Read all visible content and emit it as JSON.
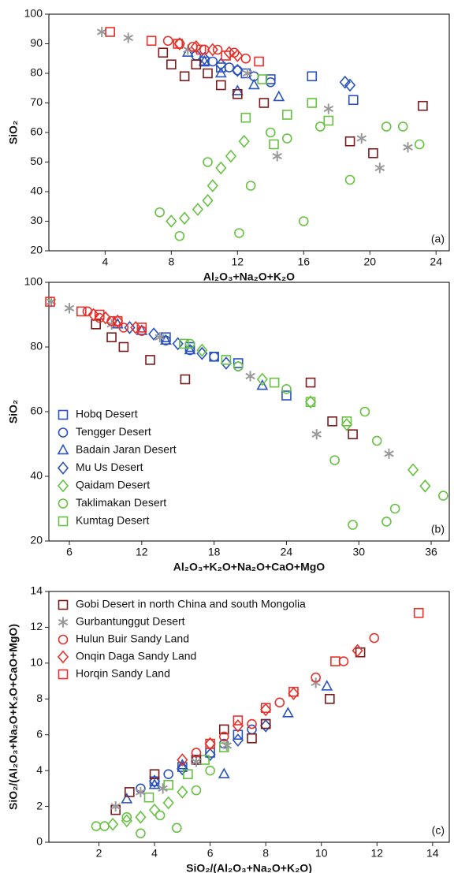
{
  "chart_data": [
    {
      "type": "scatter",
      "panel_label": "(a)",
      "x_label": "Al₂O₃+Na₂O+K₂O",
      "y_label": "SiO₂",
      "xlim": [
        0.6,
        24.8
      ],
      "ylim": [
        20,
        100
      ],
      "xticks": [
        4,
        8,
        12,
        16,
        20,
        24
      ],
      "yticks": [
        20,
        30,
        40,
        50,
        60,
        70,
        80,
        90,
        100
      ],
      "series": [
        {
          "marker": "square",
          "color": "#2a52be",
          "x": [
            10,
            11,
            12.5,
            14,
            16.5,
            19
          ],
          "values": [
            84,
            82,
            80,
            78,
            79,
            71
          ]
        },
        {
          "marker": "circle",
          "color": "#2a52be",
          "x": [
            9.5,
            10.5,
            11.5,
            12,
            13,
            14
          ],
          "values": [
            86,
            84,
            82,
            81,
            79,
            77
          ]
        },
        {
          "marker": "triangle",
          "color": "#2a52be",
          "x": [
            9,
            10,
            11,
            12,
            13,
            14.5
          ],
          "values": [
            87,
            84,
            80,
            74,
            76,
            72
          ]
        },
        {
          "marker": "diamond",
          "color": "#2a52be",
          "x": [
            10,
            11,
            12,
            18.5,
            18.8
          ],
          "values": [
            85,
            83,
            81,
            77,
            76
          ]
        },
        {
          "marker": "diamond",
          "color": "#66c240",
          "x": [
            8,
            8.8,
            9.6,
            10.2,
            10.5,
            11,
            11.6,
            12.4
          ],
          "values": [
            30,
            31,
            34,
            37,
            42,
            48,
            52,
            57
          ]
        },
        {
          "marker": "circle",
          "color": "#66c240",
          "x": [
            7.3,
            8.5,
            10.2,
            12.1,
            12.8,
            14,
            15,
            16,
            17,
            18.8,
            21,
            22,
            23
          ],
          "values": [
            33,
            25,
            50,
            26,
            42,
            60,
            58,
            30,
            62,
            44,
            62,
            62,
            56
          ]
        },
        {
          "marker": "square",
          "color": "#66c240",
          "x": [
            12.5,
            13.5,
            14.2,
            15,
            16.5,
            17.5
          ],
          "values": [
            65,
            78,
            56,
            66,
            70,
            64
          ]
        },
        {
          "marker": "square",
          "color": "#7b1a1a",
          "x": [
            7.5,
            8,
            8.8,
            9.5,
            10.2,
            11,
            12,
            13.6,
            18.8,
            20.2,
            23.2
          ],
          "values": [
            87,
            83,
            79,
            83,
            80,
            76,
            73,
            70,
            57,
            53,
            69
          ]
        },
        {
          "marker": "asterisk",
          "color": "#999999",
          "x": [
            3.8,
            5.4,
            9,
            12.6,
            14.4,
            17.5,
            19.5,
            20.6,
            22.3
          ],
          "values": [
            94,
            92,
            88,
            80,
            52,
            68,
            58,
            48,
            55
          ]
        },
        {
          "marker": "circle",
          "color": "#e8312b",
          "x": [
            7.8,
            8.5,
            9.3,
            10,
            10.8,
            11.8,
            12.5
          ],
          "values": [
            91,
            90,
            89,
            88,
            88,
            87,
            85
          ]
        },
        {
          "marker": "diamond",
          "color": "#e8312b",
          "x": [
            8.5,
            9.5,
            10.5,
            11.5,
            12
          ],
          "values": [
            90,
            89,
            88,
            87,
            86
          ]
        },
        {
          "marker": "square",
          "color": "#e8312b",
          "x": [
            4.3,
            6.8,
            8.4,
            9.8,
            11.3,
            13.3
          ],
          "values": [
            94,
            91,
            90,
            88,
            86,
            84
          ]
        }
      ]
    },
    {
      "type": "scatter",
      "panel_label": "(b)",
      "x_label": "Al₂O₃+K₂O+Na₂O+CaO+MgO",
      "y_label": "SiO₂",
      "xlim": [
        4.3,
        37.5
      ],
      "ylim": [
        20,
        100
      ],
      "xticks": [
        6,
        12,
        18,
        24,
        30,
        36
      ],
      "yticks": [
        20,
        40,
        60,
        80,
        100
      ],
      "series": [
        {
          "name": "Hobq Desert",
          "marker": "square",
          "color": "#2a52be",
          "x": [
            14,
            16,
            18,
            20,
            24
          ],
          "values": [
            83,
            80,
            77,
            75,
            65
          ]
        },
        {
          "name": "Tengger Desert",
          "marker": "circle",
          "color": "#2a52be",
          "x": [
            12,
            14,
            16,
            18,
            20
          ],
          "values": [
            85,
            82,
            79,
            77,
            74
          ]
        },
        {
          "name": "Badain Jaran Desert",
          "marker": "triangle",
          "color": "#2a52be",
          "x": [
            10,
            12,
            14,
            16,
            22
          ],
          "values": [
            87,
            85,
            82,
            79,
            68
          ]
        },
        {
          "name": "Mu Us Desert",
          "marker": "diamond",
          "color": "#2a52be",
          "x": [
            11,
            13,
            15,
            17,
            19
          ],
          "values": [
            86,
            84,
            81,
            78,
            75
          ]
        },
        {
          "name": "Qaidam Desert",
          "marker": "diamond",
          "color": "#66c240",
          "x": [
            17,
            22,
            26,
            29,
            34.5,
            35.5
          ],
          "values": [
            79,
            70,
            63,
            56,
            42,
            37
          ]
        },
        {
          "name": "Taklimakan Desert",
          "marker": "circle",
          "color": "#66c240",
          "x": [
            16,
            20,
            24,
            28,
            29.5,
            30.5,
            31.5,
            32.3,
            33,
            37
          ],
          "values": [
            81,
            74,
            67,
            45,
            25,
            60,
            51,
            26,
            30,
            34
          ]
        },
        {
          "name": "Kumtag Desert",
          "marker": "square",
          "color": "#66c240",
          "x": [
            15.5,
            19,
            23,
            26,
            29
          ],
          "values": [
            81,
            76,
            69,
            63,
            57
          ]
        },
        {
          "marker": "square",
          "color": "#7b1a1a",
          "x": [
            8.2,
            9.5,
            10.5,
            12.7,
            15.6,
            26,
            27.8,
            29.5
          ],
          "values": [
            87,
            83,
            80,
            76,
            70,
            69,
            57,
            53
          ]
        },
        {
          "marker": "asterisk",
          "color": "#999999",
          "x": [
            4.5,
            6,
            9.5,
            13.5,
            21,
            26.5,
            32.5
          ],
          "values": [
            94,
            92,
            87,
            83,
            71,
            53,
            47
          ]
        },
        {
          "marker": "circle",
          "color": "#e8312b",
          "x": [
            7.5,
            8.5,
            9.5,
            10.5,
            12
          ],
          "values": [
            91,
            89,
            88,
            86,
            85
          ]
        },
        {
          "marker": "diamond",
          "color": "#e8312b",
          "x": [
            8,
            9,
            10,
            11.5
          ],
          "values": [
            90,
            89,
            88,
            86
          ]
        },
        {
          "marker": "square",
          "color": "#e8312b",
          "x": [
            4.4,
            7,
            8.5,
            10,
            12
          ],
          "values": [
            94,
            91,
            90,
            88,
            86
          ]
        }
      ]
    },
    {
      "type": "scatter",
      "panel_label": "(c)",
      "x_label": "SiO₂/(Al₂O₃+Na₂O+K₂O)",
      "y_label": "SiO₂/(Al₂O₃+Na₂O+K₂O+CaO+MgO)",
      "xlim": [
        0.2,
        14.6
      ],
      "ylim": [
        0,
        14
      ],
      "xticks": [
        2,
        4,
        6,
        8,
        10,
        12,
        14
      ],
      "yticks": [
        0,
        2,
        4,
        6,
        8,
        10,
        12,
        14
      ],
      "series": [
        {
          "marker": "square",
          "color": "#2a52be",
          "x": [
            4,
            5,
            6,
            7,
            8
          ],
          "values": [
            3.4,
            4.2,
            5,
            6,
            6.6
          ]
        },
        {
          "marker": "circle",
          "color": "#2a52be",
          "x": [
            3.5,
            4.5,
            5.5,
            6.5,
            7.5
          ],
          "values": [
            3,
            3.8,
            4.6,
            5.5,
            6.3
          ]
        },
        {
          "marker": "triangle",
          "color": "#2a52be",
          "x": [
            3,
            4,
            5,
            6.5,
            8.8,
            10.2
          ],
          "values": [
            2.4,
            3.2,
            4.3,
            3.8,
            7.2,
            8.7
          ]
        },
        {
          "marker": "diamond",
          "color": "#2a52be",
          "x": [
            4,
            5,
            6,
            7,
            8
          ],
          "values": [
            3.4,
            4.1,
            4.9,
            5.7,
            6.5
          ]
        },
        {
          "marker": "diamond",
          "color": "#66c240",
          "x": [
            2.5,
            3,
            3.5,
            4,
            4.5,
            5
          ],
          "values": [
            1,
            1.2,
            1.4,
            1.8,
            2.2,
            2.8
          ]
        },
        {
          "marker": "circle",
          "color": "#66c240",
          "x": [
            1.9,
            2.2,
            3,
            3.5,
            4.2,
            4.8,
            5.5,
            6
          ],
          "values": [
            0.9,
            0.9,
            1.4,
            0.5,
            1.5,
            0.8,
            2.9,
            4
          ]
        },
        {
          "marker": "square",
          "color": "#66c240",
          "x": [
            3.8,
            4.5,
            5.2,
            5.8,
            6.5
          ],
          "values": [
            2.5,
            3.2,
            3.8,
            4.6,
            5.3
          ]
        },
        {
          "name": "Gobi Desert in north China and south Mongolia",
          "marker": "square",
          "color": "#7b1a1a",
          "x": [
            2.6,
            3.1,
            4,
            5.5,
            6.5,
            7.5,
            8,
            10.3,
            11.4
          ],
          "values": [
            1.8,
            2.8,
            3.8,
            4.6,
            6.3,
            5.8,
            6.6,
            8,
            10.6
          ]
        },
        {
          "name": "Gurbantunggut Desert",
          "marker": "asterisk",
          "color": "#999999",
          "x": [
            2.6,
            3.5,
            4.3,
            5.5,
            6.6,
            9.8
          ],
          "values": [
            2,
            2.8,
            3,
            4.5,
            5.4,
            8.9
          ]
        },
        {
          "name": "Hulun Buir Sandy Land",
          "marker": "circle",
          "color": "#e8312b",
          "x": [
            5.5,
            6.5,
            7.5,
            8.5,
            9.8,
            10.8,
            11.9
          ],
          "values": [
            5,
            5.9,
            6.6,
            7.8,
            9.2,
            10.1,
            11.4
          ]
        },
        {
          "name": "Onqin Daga Sandy Land",
          "marker": "diamond",
          "color": "#e8312b",
          "x": [
            5,
            6,
            7,
            8,
            9,
            11.3
          ],
          "values": [
            4.6,
            5.5,
            6.5,
            7.4,
            8.3,
            10.7
          ]
        },
        {
          "name": "Horqin Sandy Land",
          "marker": "square",
          "color": "#e8312b",
          "x": [
            6,
            7,
            8,
            9,
            10.5,
            13.5
          ],
          "values": [
            5.5,
            6.8,
            7.5,
            8.4,
            10.1,
            12.8
          ]
        }
      ]
    }
  ]
}
